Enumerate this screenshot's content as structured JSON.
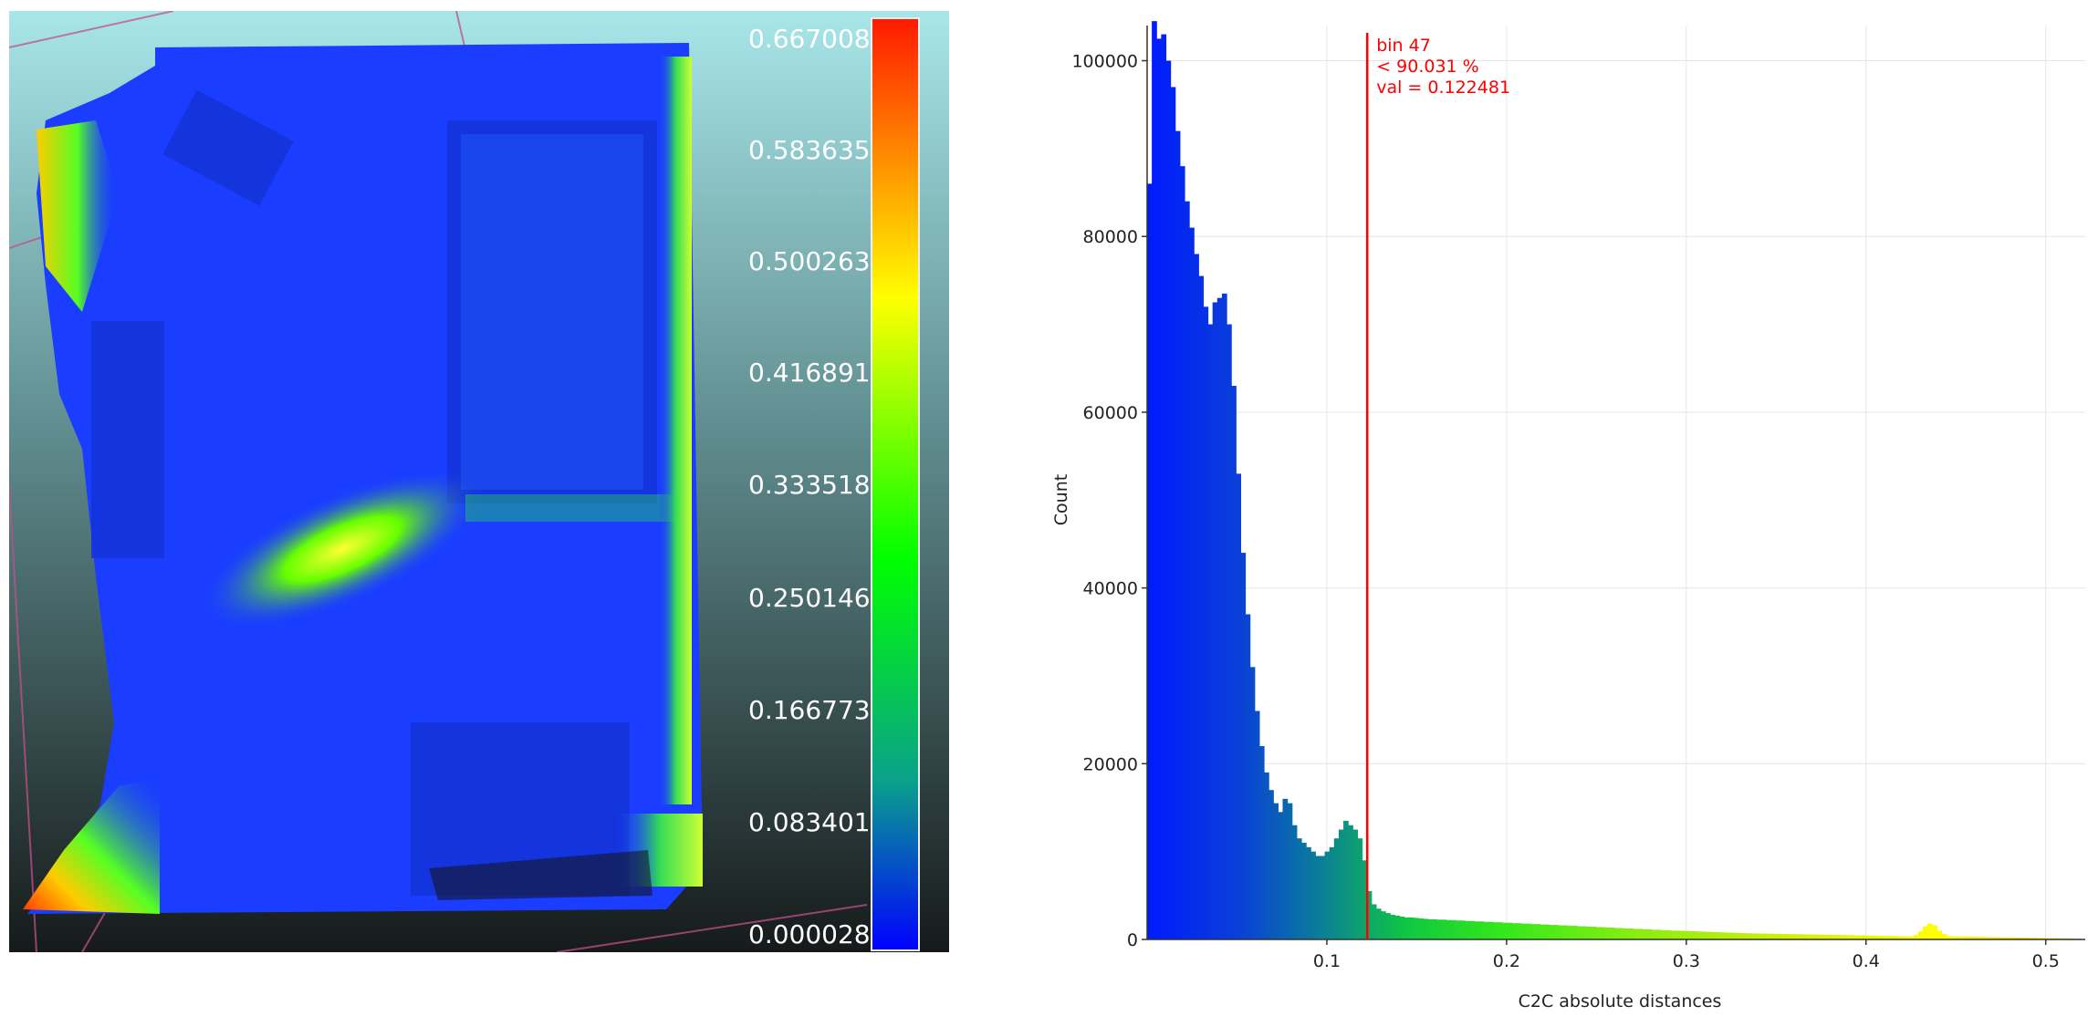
{
  "scalar_field": {
    "scale_labels": [
      "0.667008",
      "0.583635",
      "0.500263",
      "0.416891",
      "0.333518",
      "0.250146",
      "0.166773",
      "0.083401",
      "0.000028"
    ],
    "colors": {
      "background_top": "#a8e6e9",
      "background_bottom": "#161a1a",
      "cloud_base": "#1a3dff",
      "scale_top": "#ff1a00",
      "scale_upper": "#ffff00",
      "scale_mid": "#00ff00",
      "scale_low": "#0aa08c",
      "scale_bottom": "#0000ff"
    }
  },
  "chart_data": {
    "type": "bar",
    "xlabel": "C2C absolute distances",
    "ylabel": "Count",
    "xlim": [
      0,
      0.522
    ],
    "ylim": [
      0,
      104000
    ],
    "x_ticks": [
      "0.1",
      "0.2",
      "0.3",
      "0.4",
      "0.5"
    ],
    "y_ticks": [
      "0",
      "20000",
      "40000",
      "60000",
      "80000",
      "100000"
    ],
    "bin_width": 0.0026,
    "values": [
      86000,
      104500,
      102500,
      103000,
      100000,
      97000,
      92000,
      88000,
      84000,
      81000,
      78000,
      75500,
      72000,
      70000,
      72500,
      73000,
      73500,
      70000,
      63000,
      53000,
      44000,
      37000,
      31000,
      26000,
      22000,
      19000,
      17000,
      15500,
      14500,
      16000,
      15500,
      13000,
      11500,
      11000,
      10500,
      10000,
      9500,
      9500,
      10000,
      10500,
      11500,
      12500,
      13500,
      13000,
      12500,
      11500,
      9000,
      5500,
      4000,
      3500,
      3200,
      3000,
      2800,
      2700,
      2600,
      2500,
      2500,
      2450,
      2400,
      2350,
      2300,
      2300,
      2250,
      2250,
      2200,
      2200,
      2150,
      2150,
      2100,
      2100,
      2050,
      2050,
      2000,
      2000,
      1950,
      1950,
      1900,
      1900,
      1850,
      1850,
      1800,
      1800,
      1750,
      1750,
      1700,
      1700,
      1650,
      1650,
      1600,
      1600,
      1550,
      1550,
      1500,
      1500,
      1450,
      1450,
      1400,
      1400,
      1350,
      1350,
      1300,
      1300,
      1250,
      1250,
      1200,
      1200,
      1150,
      1150,
      1100,
      1100,
      1050,
      1050,
      1000,
      1000,
      980,
      960,
      940,
      920,
      900,
      880,
      860,
      840,
      820,
      800,
      780,
      760,
      740,
      720,
      700,
      690,
      680,
      670,
      660,
      650,
      640,
      630,
      620,
      610,
      600,
      590,
      580,
      570,
      560,
      550,
      540,
      530,
      520,
      510,
      500,
      490,
      480,
      470,
      460,
      450,
      440,
      430,
      420,
      410,
      400,
      390,
      380,
      370,
      360,
      350,
      500,
      900,
      1500,
      1800,
      1600,
      1000,
      600,
      400,
      350,
      340,
      330,
      320,
      310,
      300,
      290,
      280,
      270,
      260,
      250,
      240,
      230,
      220,
      210,
      200,
      190,
      180,
      170,
      160,
      150,
      140,
      130,
      120,
      110,
      100,
      90,
      80
    ],
    "marker": {
      "x": 0.122481,
      "lines": [
        "bin 47",
        "< 90.031 %",
        "val = 0.122481"
      ],
      "color": "#ff0000"
    }
  }
}
